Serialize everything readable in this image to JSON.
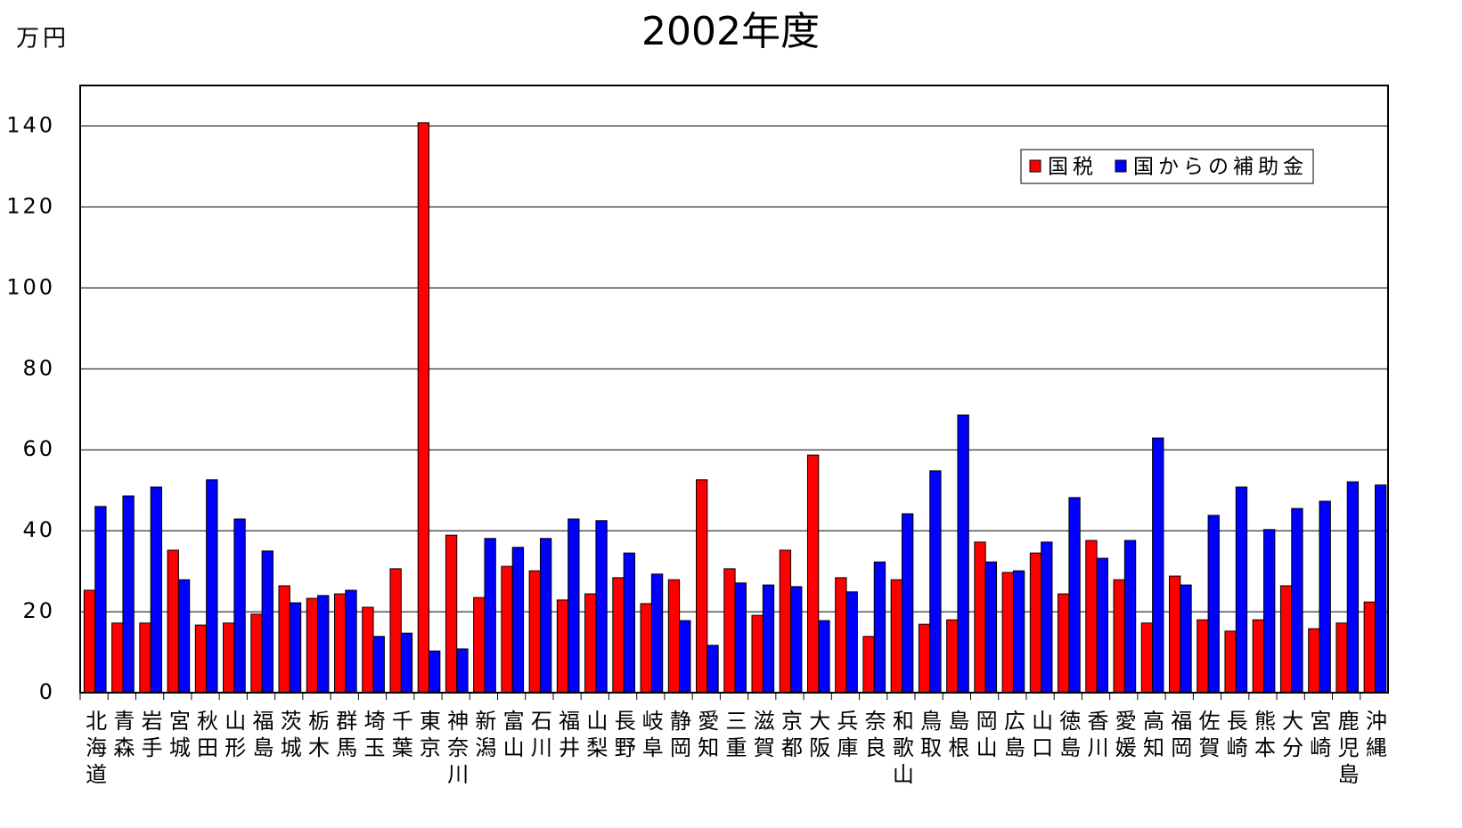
{
  "chart_data": {
    "type": "bar",
    "title": "2002年度",
    "y_label": "万円",
    "categories": [
      "北海道",
      "青森",
      "岩手",
      "宮城",
      "秋田",
      "山形",
      "福島",
      "茨城",
      "栃木",
      "群馬",
      "埼玉",
      "千葉",
      "東京",
      "神奈川",
      "新潟",
      "富山",
      "石川",
      "福井",
      "山梨",
      "長野",
      "岐阜",
      "静岡",
      "愛知",
      "三重",
      "滋賀",
      "京都",
      "大阪",
      "兵庫",
      "奈良",
      "和歌山",
      "鳥取",
      "島根",
      "岡山",
      "広島",
      "山口",
      "徳島",
      "香川",
      "愛媛",
      "高知",
      "福岡",
      "佐賀",
      "長崎",
      "熊本",
      "大分",
      "宮崎",
      "鹿児島",
      "沖縄"
    ],
    "series": [
      {
        "name": "国税",
        "color": "#ff0000",
        "values": [
          25.3,
          17.2,
          17.2,
          35.2,
          16.7,
          17.2,
          19.4,
          26.4,
          23.3,
          24.4,
          21.1,
          30.6,
          140.8,
          38.9,
          23.5,
          31.2,
          30.1,
          22.9,
          24.4,
          28.4,
          22,
          27.9,
          52.6,
          30.6,
          19.1,
          35.2,
          58.7,
          28.4,
          13.9,
          27.9,
          16.9,
          18,
          37.2,
          29.7,
          34.5,
          24.4,
          37.6,
          27.9,
          17.2,
          28.8,
          18,
          15.2,
          18,
          26.4,
          15.8,
          17.2,
          22.4
        ]
      },
      {
        "name": "国からの補助金",
        "color": "#0000ff",
        "values": [
          46,
          48.6,
          50.8,
          27.9,
          52.6,
          42.9,
          35,
          22.2,
          24,
          25.3,
          13.9,
          14.7,
          10.3,
          10.8,
          38.1,
          35.9,
          38.1,
          42.9,
          42.5,
          34.5,
          29.3,
          17.8,
          11.7,
          27.1,
          26.6,
          26.2,
          17.8,
          24.9,
          32.3,
          44.2,
          54.8,
          68.6,
          32.3,
          30.1,
          37.2,
          48.2,
          33.2,
          37.6,
          62.9,
          26.6,
          43.8,
          50.8,
          40.3,
          45.5,
          47.3,
          52.1,
          51.3
        ]
      }
    ],
    "ylim": [
      0,
      150
    ],
    "yticks": [
      0,
      20,
      40,
      60,
      80,
      100,
      120,
      140
    ],
    "grid": true,
    "legend": "upper right"
  }
}
